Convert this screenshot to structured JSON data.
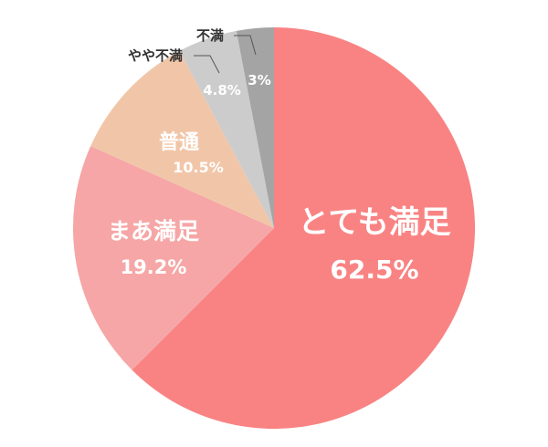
{
  "chart_data": {
    "type": "pie",
    "title": "",
    "slices": [
      {
        "label": "とても満足",
        "value": 62.5,
        "display": "62.5%",
        "color": "#f98383"
      },
      {
        "label": "まあ満足",
        "value": 19.2,
        "display": "19.2%",
        "color": "#f6a6a6"
      },
      {
        "label": "普通",
        "value": 10.5,
        "display": "10.5%",
        "color": "#f1c6a8"
      },
      {
        "label": "やや不満",
        "value": 4.8,
        "display": "4.8%",
        "color": "#cccccc"
      },
      {
        "label": "不満",
        "value": 3,
        "display": "3%",
        "color": "#a4a4a4"
      }
    ],
    "start_angle": "12 o'clock",
    "direction": "clockwise",
    "legend": "none"
  }
}
